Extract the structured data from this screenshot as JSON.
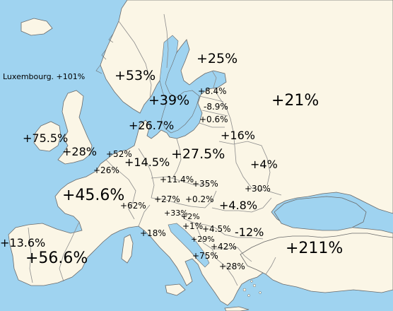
{
  "colors": {
    "sea": "#9fd3f0",
    "land": "#fbf6e6",
    "border": "#8c8c8c",
    "coast": "#6a6a6a"
  },
  "note": "Luxembourg. +101%",
  "labels": {
    "finland": "+25%",
    "norway": "+53%",
    "sweden": "+39%",
    "estonia": "+8.4%",
    "latvia": "-8.9%",
    "lithuania": "+0.6%",
    "russia": "+21%",
    "denmark": "+26.7%",
    "belarus": "+16%",
    "ireland": "+75.5%",
    "uk": "+28%",
    "netherlands": "+52%",
    "germany": "+14.5%",
    "poland": "+27.5%",
    "belgium": "+26%",
    "ukraine": "+4%",
    "france": "+45.6%",
    "czechia": "+11.4%",
    "slovakia": "+35%",
    "moldova": "+30%",
    "switzerland": "+62%",
    "austria": "+27%",
    "hungary": "+0.2%",
    "romania": "+4.8%",
    "slovenia": "+33%",
    "croatia": "+2%",
    "bosnia": "+1%",
    "serbia": "+4.5%",
    "bulgaria": "-12%",
    "portugal": "+13.6%",
    "spain": "+56.6%",
    "italy": "+18%",
    "montenegro": "+29%",
    "kosovo": "+42%",
    "albania": "+75%",
    "greece": "+28%",
    "turkey": "+211%"
  }
}
